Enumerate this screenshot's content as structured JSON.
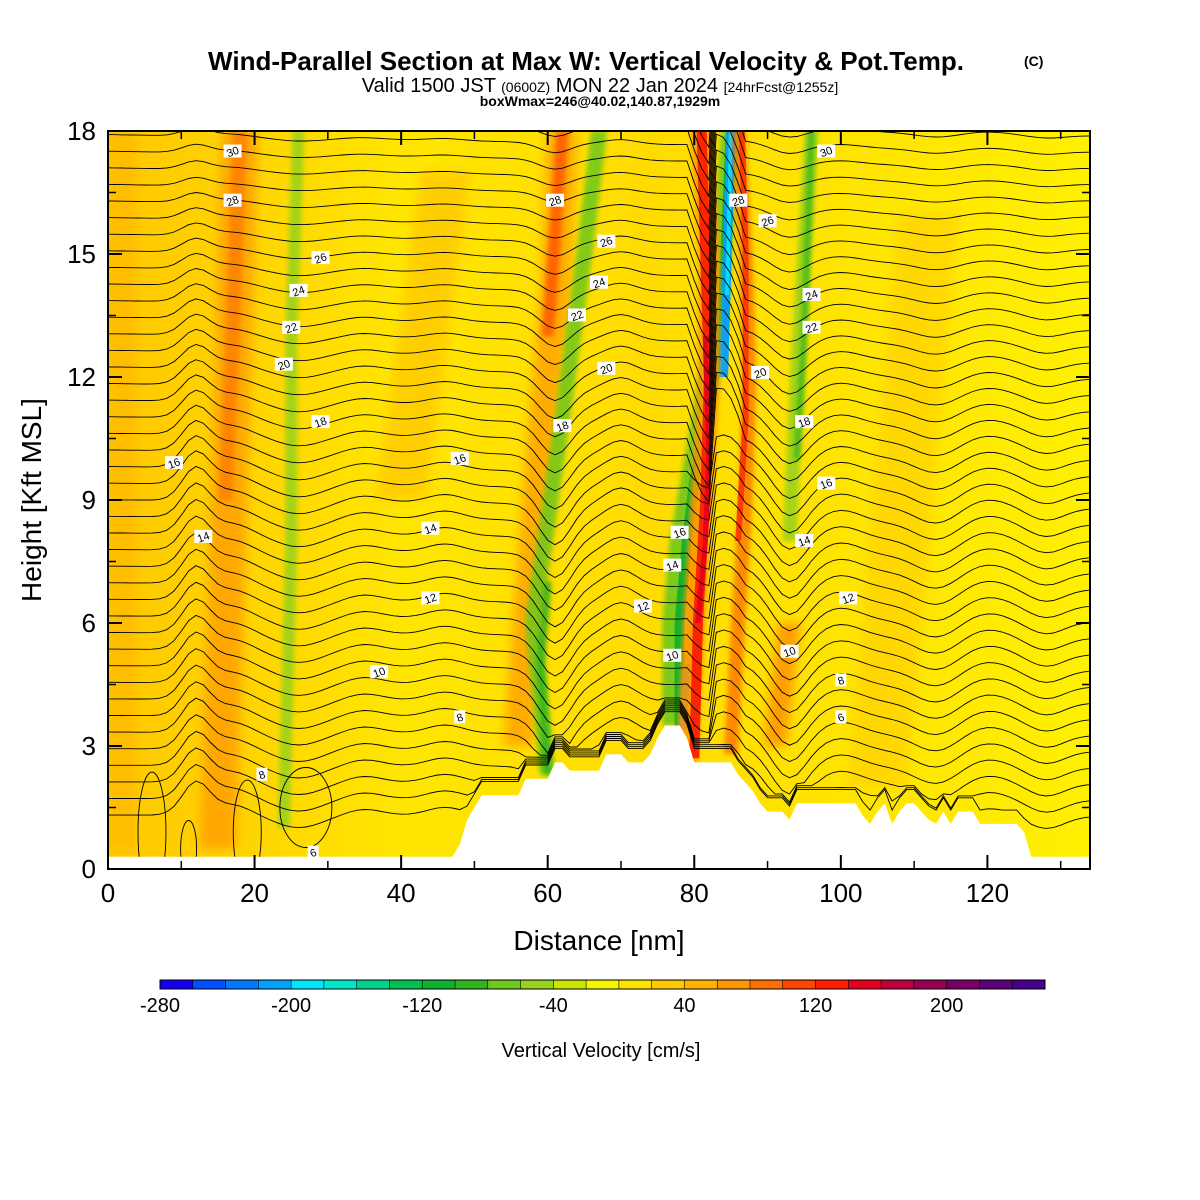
{
  "chart_data": {
    "type": "heatmap",
    "title": "Wind-Parallel Section at Max W: Vertical Velocity & Pot.Temp.",
    "copyright": "(C)",
    "subtitle_valid": "Valid 1500 JST",
    "subtitle_utc": "(0600Z)",
    "subtitle_date": "MON 22 Jan 2024",
    "subtitle_fcst": "[24hrFcst@1255z]",
    "box_info": "boxWmax=246@40.02,140.87,1929m",
    "xlabel": "Distance [nm]",
    "ylabel": "Height [Kft MSL]",
    "xlim": [
      0,
      134
    ],
    "ylim": [
      0,
      18
    ],
    "x_ticks": [
      "0",
      "20",
      "40",
      "60",
      "80",
      "100",
      "120"
    ],
    "y_ticks": [
      "0",
      "3",
      "6",
      "9",
      "12",
      "15",
      "18"
    ],
    "colorbar": {
      "label": "Vertical Velocity [cm/s]",
      "range": [
        -280,
        260
      ],
      "step": 20,
      "tick_labels": [
        "-280",
        "-200",
        "-120",
        "-40",
        "40",
        "120",
        "200"
      ],
      "colors": [
        "#1400f0",
        "#0050ff",
        "#0078ff",
        "#00a0ff",
        "#00e6ff",
        "#00e6c8",
        "#00d28c",
        "#00c050",
        "#10b030",
        "#2eb41e",
        "#6ec81e",
        "#96d21e",
        "#c8e600",
        "#f5f500",
        "#ffe600",
        "#ffc800",
        "#ffb400",
        "#ff9600",
        "#ff6e00",
        "#ff4600",
        "#ff1e00",
        "#e6001e",
        "#be003c",
        "#960050",
        "#780064",
        "#5a0078",
        "#46008c"
      ]
    },
    "velocity_features": [
      {
        "type": "updraft",
        "x_center": 85,
        "x_at_base": 80,
        "x_at_top": 86,
        "peak_cm_s": 246
      },
      {
        "type": "downdraft",
        "x_center": 79,
        "x_at_base": 79,
        "x_at_top": 85,
        "min_cm_s": -200
      },
      {
        "type": "updraft",
        "x_center": 17,
        "peak_cm_s": 100
      },
      {
        "type": "updraft",
        "x_center": 62,
        "peak_cm_s": 110
      },
      {
        "type": "downdraft",
        "x_center": 25,
        "min_cm_s": -40
      },
      {
        "type": "downdraft",
        "x_center": 60,
        "min_cm_s": -60
      },
      {
        "type": "downdraft",
        "x_center": 95,
        "min_cm_s": -60
      }
    ],
    "terrain_nm_kft": [
      [
        0,
        0.3
      ],
      [
        47,
        0.3
      ],
      [
        48,
        0.6
      ],
      [
        49,
        1.2
      ],
      [
        51,
        1.8
      ],
      [
        56,
        1.8
      ],
      [
        57,
        2.2
      ],
      [
        60,
        2.2
      ],
      [
        61,
        2.6
      ],
      [
        62,
        2.6
      ],
      [
        63,
        2.4
      ],
      [
        67,
        2.4
      ],
      [
        68,
        2.8
      ],
      [
        70,
        2.8
      ],
      [
        71,
        2.6
      ],
      [
        73,
        2.6
      ],
      [
        74,
        2.8
      ],
      [
        75,
        3.2
      ],
      [
        76,
        3.5
      ],
      [
        78,
        3.5
      ],
      [
        79,
        3.2
      ],
      [
        80,
        2.6
      ],
      [
        85,
        2.6
      ],
      [
        86,
        2.3
      ],
      [
        87,
        2.1
      ],
      [
        88,
        1.9
      ],
      [
        89,
        1.6
      ],
      [
        90,
        1.4
      ],
      [
        92,
        1.4
      ],
      [
        93,
        1.2
      ],
      [
        94,
        1.6
      ],
      [
        102,
        1.6
      ],
      [
        103,
        1.3
      ],
      [
        104,
        1.1
      ],
      [
        105,
        1.4
      ],
      [
        106,
        1.6
      ],
      [
        107,
        1.1
      ],
      [
        108,
        1.4
      ],
      [
        109,
        1.6
      ],
      [
        110,
        1.6
      ],
      [
        111,
        1.4
      ],
      [
        112,
        1.2
      ],
      [
        113,
        1.1
      ],
      [
        114,
        1.4
      ],
      [
        115,
        1.1
      ],
      [
        116,
        1.4
      ],
      [
        118,
        1.4
      ],
      [
        119,
        1.1
      ],
      [
        124,
        1.1
      ],
      [
        125,
        0.9
      ],
      [
        126,
        0.3
      ],
      [
        134,
        0.3
      ]
    ],
    "theta_contours": [
      {
        "label": "6",
        "base_kft": 1.9,
        "labels_at": [
          [
            28,
            0.4
          ],
          [
            100,
            3.7
          ]
        ]
      },
      {
        "label": "8",
        "base_kft": 2.6,
        "labels_at": [
          [
            21,
            2.3
          ],
          [
            48,
            3.7
          ],
          [
            100,
            4.6
          ]
        ]
      },
      {
        "label": "10",
        "base_kft": 4.5,
        "labels_at": [
          [
            37,
            4.8
          ],
          [
            77,
            5.2
          ],
          [
            93,
            5.3
          ]
        ]
      },
      {
        "label": "12",
        "base_kft": 6.5,
        "labels_at": [
          [
            44,
            6.6
          ],
          [
            73,
            6.4
          ],
          [
            101,
            6.6
          ]
        ]
      },
      {
        "label": "14",
        "base_kft": 7.9,
        "labels_at": [
          [
            13,
            8.1
          ],
          [
            44,
            8.3
          ],
          [
            77,
            7.4
          ],
          [
            95,
            8.0
          ]
        ]
      },
      {
        "label": "16",
        "base_kft": 9.6,
        "labels_at": [
          [
            9,
            9.9
          ],
          [
            48,
            10.0
          ],
          [
            78,
            8.2
          ],
          [
            98,
            9.4
          ]
        ]
      },
      {
        "label": "18",
        "base_kft": 10.9,
        "labels_at": [
          [
            29,
            10.9
          ],
          [
            62,
            10.8
          ],
          [
            95,
            10.9
          ]
        ]
      },
      {
        "label": "20",
        "base_kft": 12.2,
        "labels_at": [
          [
            24,
            12.3
          ],
          [
            68,
            12.2
          ],
          [
            89,
            12.1
          ]
        ]
      },
      {
        "label": "22",
        "base_kft": 13.2,
        "labels_at": [
          [
            25,
            13.2
          ],
          [
            64,
            13.5
          ],
          [
            96,
            13.2
          ]
        ]
      },
      {
        "label": "24",
        "base_kft": 14.1,
        "labels_at": [
          [
            26,
            14.1
          ],
          [
            67,
            14.3
          ],
          [
            96,
            14.0
          ]
        ]
      },
      {
        "label": "26",
        "base_kft": 15.0,
        "labels_at": [
          [
            29,
            14.9
          ],
          [
            68,
            15.3
          ],
          [
            90,
            15.8
          ]
        ]
      },
      {
        "label": "28",
        "base_kft": 16.3,
        "labels_at": [
          [
            17,
            16.3
          ],
          [
            61,
            16.3
          ],
          [
            86,
            16.3
          ]
        ]
      },
      {
        "label": "30",
        "base_kft": 17.5,
        "labels_at": [
          [
            17,
            17.5
          ],
          [
            98,
            17.5
          ]
        ]
      }
    ]
  }
}
